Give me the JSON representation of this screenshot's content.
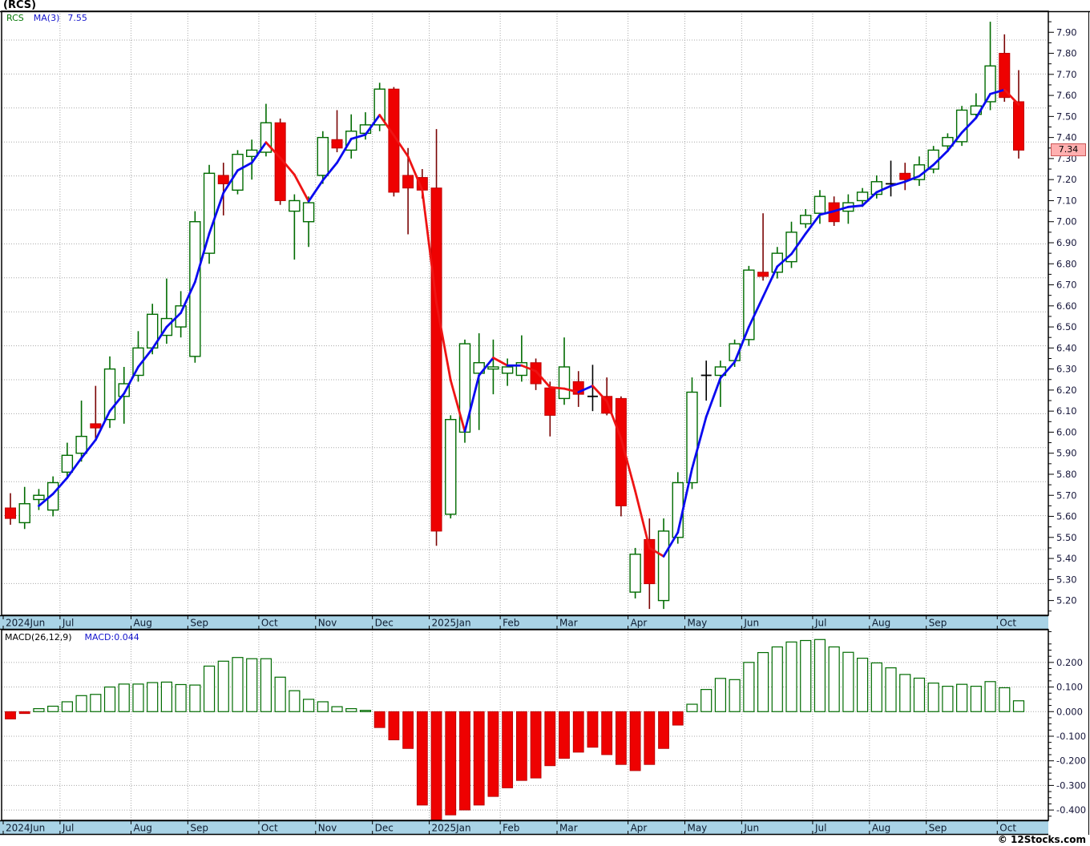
{
  "title": "(RCS)",
  "legend": {
    "symbol": "RCS",
    "ma_label": "MA(3)",
    "ma_value": "7.55"
  },
  "macd_legend": {
    "label": "MACD(26,12,9)",
    "value": "MACD:0.044"
  },
  "price_label": {
    "value": "7.34"
  },
  "footer": "© 12Stocks.com",
  "colors": {
    "band_bg": "#a9d3e6",
    "grid": "#a8a8a8",
    "candle_up_stroke": "#006b00",
    "candle_up_fill": "#ffffff",
    "candle_down_fill": "#ee0101",
    "candle_down_stroke": "#c00000",
    "wick_up": "#006b00",
    "wick_down": "#7b0404",
    "doji_black": "#000000",
    "ma_up": "#0a0af0",
    "ma_down": "#ee1414",
    "macd_pos_stroke": "#006b00",
    "macd_pos_fill": "#ffffff",
    "macd_neg_fill": "#ee0101",
    "macd_neg_stroke": "#b00000",
    "axis_text": "#16163a",
    "band_text": "#0d1c30",
    "border": "#000000",
    "price_tag_bg": "#ffb0b0",
    "price_tag_border": "#cc5555"
  },
  "chart_data": {
    "type": "candlestick",
    "symbol": "RCS",
    "ma_period": 3,
    "ma_current": 7.55,
    "grid": "dotted",
    "legend_position": "top-left",
    "months": [
      {
        "label": "2024Jun",
        "start": 0
      },
      {
        "label": "Jul",
        "start": 4
      },
      {
        "label": "Aug",
        "start": 9
      },
      {
        "label": "Sep",
        "start": 13
      },
      {
        "label": "Oct",
        "start": 18
      },
      {
        "label": "Nov",
        "start": 22
      },
      {
        "label": "Dec",
        "start": 26
      },
      {
        "label": "2025Jan",
        "start": 30
      },
      {
        "label": "Feb",
        "start": 35
      },
      {
        "label": "Mar",
        "start": 39
      },
      {
        "label": "Apr",
        "start": 44
      },
      {
        "label": "May",
        "start": 48
      },
      {
        "label": "Jun",
        "start": 52
      },
      {
        "label": "Jul",
        "start": 57
      },
      {
        "label": "Aug",
        "start": 61
      },
      {
        "label": "Sep",
        "start": 65
      },
      {
        "label": "Oct",
        "start": 70
      }
    ],
    "price_axis": {
      "min": 5.13,
      "max": 8.0,
      "label_min": 5.2,
      "label_max": 7.9,
      "label_step": 0.1,
      "minor_tick_step": 0.05,
      "current": 7.34
    },
    "candles": [
      [
        5.64,
        5.71,
        5.56,
        5.59,
        "r"
      ],
      [
        5.57,
        5.74,
        5.54,
        5.66,
        "g"
      ],
      [
        5.68,
        5.73,
        5.63,
        5.7,
        "g"
      ],
      [
        5.63,
        5.79,
        5.6,
        5.76,
        "g"
      ],
      [
        5.81,
        5.95,
        5.78,
        5.89,
        "g"
      ],
      [
        5.9,
        6.15,
        5.86,
        5.98,
        "g"
      ],
      [
        6.04,
        6.22,
        5.97,
        6.02,
        "r"
      ],
      [
        6.06,
        6.36,
        6.02,
        6.3,
        "g"
      ],
      [
        6.17,
        6.31,
        6.04,
        6.23,
        "g"
      ],
      [
        6.27,
        6.48,
        6.24,
        6.4,
        "g"
      ],
      [
        6.4,
        6.61,
        6.37,
        6.56,
        "g"
      ],
      [
        6.46,
        6.73,
        6.42,
        6.54,
        "g"
      ],
      [
        6.5,
        6.67,
        6.45,
        6.6,
        "g"
      ],
      [
        6.36,
        7.05,
        6.33,
        7.0,
        "g"
      ],
      [
        6.85,
        7.27,
        6.8,
        7.23,
        "g"
      ],
      [
        7.22,
        7.28,
        7.03,
        7.18,
        "r"
      ],
      [
        7.15,
        7.34,
        7.13,
        7.32,
        "g"
      ],
      [
        7.31,
        7.39,
        7.2,
        7.34,
        "g"
      ],
      [
        7.33,
        7.56,
        7.31,
        7.47,
        "g"
      ],
      [
        7.47,
        7.49,
        7.08,
        7.1,
        "r"
      ],
      [
        7.05,
        7.13,
        6.82,
        7.1,
        "g"
      ],
      [
        7.0,
        7.12,
        6.88,
        7.09,
        "g"
      ],
      [
        7.22,
        7.43,
        7.18,
        7.4,
        "g"
      ],
      [
        7.39,
        7.53,
        7.33,
        7.35,
        "r"
      ],
      [
        7.34,
        7.51,
        7.3,
        7.43,
        "g"
      ],
      [
        7.42,
        7.52,
        7.39,
        7.46,
        "g"
      ],
      [
        7.46,
        7.66,
        7.43,
        7.63,
        "g"
      ],
      [
        7.63,
        7.64,
        7.12,
        7.14,
        "r"
      ],
      [
        7.22,
        7.35,
        6.94,
        7.16,
        "r"
      ],
      [
        7.21,
        7.25,
        7.11,
        7.15,
        "r"
      ],
      [
        7.16,
        7.44,
        5.46,
        5.53,
        "r"
      ],
      [
        5.61,
        6.08,
        5.59,
        6.06,
        "g"
      ],
      [
        6.0,
        6.44,
        5.95,
        6.42,
        "g"
      ],
      [
        6.28,
        6.47,
        6.01,
        6.33,
        "g"
      ],
      [
        6.3,
        6.44,
        6.18,
        6.31,
        "g"
      ],
      [
        6.28,
        6.35,
        6.22,
        6.31,
        "g"
      ],
      [
        6.27,
        6.46,
        6.24,
        6.33,
        "g"
      ],
      [
        6.33,
        6.35,
        6.2,
        6.23,
        "r"
      ],
      [
        6.21,
        6.24,
        5.98,
        6.08,
        "r"
      ],
      [
        6.16,
        6.45,
        6.13,
        6.31,
        "g"
      ],
      [
        6.24,
        6.29,
        6.12,
        6.18,
        "r"
      ],
      [
        6.17,
        6.32,
        6.1,
        6.17,
        "k"
      ],
      [
        6.17,
        6.26,
        6.08,
        6.09,
        "r"
      ],
      [
        6.16,
        6.17,
        5.6,
        5.65,
        "r"
      ],
      [
        5.24,
        5.45,
        5.21,
        5.42,
        "g"
      ],
      [
        5.49,
        5.59,
        5.16,
        5.28,
        "r"
      ],
      [
        5.2,
        5.59,
        5.16,
        5.53,
        "g"
      ],
      [
        5.5,
        5.81,
        5.47,
        5.76,
        "g"
      ],
      [
        5.76,
        6.26,
        5.73,
        6.19,
        "g"
      ],
      [
        6.27,
        6.34,
        6.15,
        6.27,
        "k"
      ],
      [
        6.27,
        6.34,
        6.12,
        6.31,
        "g"
      ],
      [
        6.34,
        6.44,
        6.31,
        6.42,
        "g"
      ],
      [
        6.44,
        6.79,
        6.41,
        6.77,
        "g"
      ],
      [
        6.76,
        7.04,
        6.72,
        6.74,
        "r"
      ],
      [
        6.76,
        6.88,
        6.73,
        6.85,
        "g"
      ],
      [
        6.81,
        7.0,
        6.78,
        6.95,
        "g"
      ],
      [
        6.99,
        7.06,
        6.97,
        7.03,
        "g"
      ],
      [
        7.04,
        7.15,
        6.99,
        7.12,
        "g"
      ],
      [
        7.09,
        7.12,
        6.98,
        7.0,
        "r"
      ],
      [
        7.05,
        7.13,
        6.99,
        7.09,
        "g"
      ],
      [
        7.1,
        7.16,
        7.07,
        7.14,
        "g"
      ],
      [
        7.13,
        7.22,
        7.11,
        7.19,
        "g"
      ],
      [
        7.18,
        7.29,
        7.12,
        7.18,
        "k"
      ],
      [
        7.23,
        7.28,
        7.15,
        7.2,
        "r"
      ],
      [
        7.2,
        7.31,
        7.17,
        7.27,
        "g"
      ],
      [
        7.25,
        7.36,
        7.23,
        7.34,
        "g"
      ],
      [
        7.36,
        7.42,
        7.33,
        7.4,
        "g"
      ],
      [
        7.38,
        7.55,
        7.36,
        7.53,
        "g"
      ],
      [
        7.51,
        7.61,
        7.49,
        7.55,
        "g"
      ],
      [
        7.57,
        7.95,
        7.53,
        7.74,
        "g"
      ],
      [
        7.8,
        7.89,
        7.57,
        7.59,
        "r"
      ],
      [
        7.57,
        7.72,
        7.3,
        7.34,
        "r"
      ]
    ],
    "macd": {
      "type": "bar",
      "params": "26,12,9",
      "current": 0.044,
      "axis": {
        "min": -0.442,
        "max": 0.333,
        "label_min": -0.4,
        "label_max": 0.2,
        "label_step": 0.1,
        "minor_tick_step": 0.025
      },
      "values": [
        -0.03,
        -0.008,
        0.012,
        0.022,
        0.04,
        0.065,
        0.07,
        0.1,
        0.112,
        0.112,
        0.118,
        0.12,
        0.11,
        0.108,
        0.185,
        0.205,
        0.22,
        0.215,
        0.215,
        0.14,
        0.085,
        0.05,
        0.04,
        0.02,
        0.012,
        0.005,
        -0.065,
        -0.115,
        -0.15,
        -0.38,
        -0.44,
        -0.42,
        -0.4,
        -0.38,
        -0.345,
        -0.31,
        -0.28,
        -0.27,
        -0.22,
        -0.19,
        -0.165,
        -0.145,
        -0.175,
        -0.215,
        -0.24,
        -0.215,
        -0.15,
        -0.055,
        0.03,
        0.09,
        0.135,
        0.13,
        0.2,
        0.24,
        0.263,
        0.283,
        0.289,
        0.293,
        0.263,
        0.241,
        0.217,
        0.198,
        0.178,
        0.151,
        0.136,
        0.116,
        0.103,
        0.111,
        0.103,
        0.122,
        0.097,
        0.044
      ]
    }
  }
}
